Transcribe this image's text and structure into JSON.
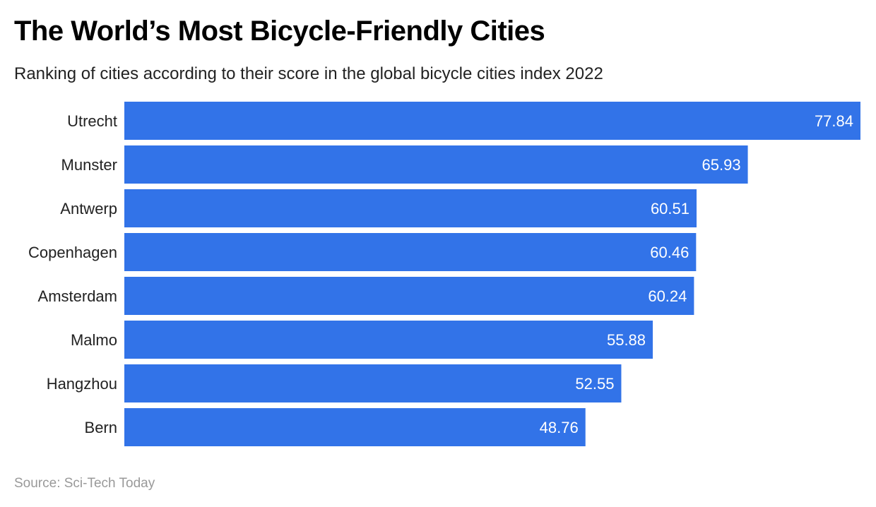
{
  "chart_data": {
    "type": "bar",
    "orientation": "horizontal",
    "title": "The World’s Most Bicycle-Friendly Cities",
    "subtitle": "Ranking of cities according to their score in the global bicycle cities index 2022",
    "source": "Source: Sci-Tech Today",
    "categories": [
      "Utrecht",
      "Munster",
      "Antwerp",
      "Copenhagen",
      "Amsterdam",
      "Malmo",
      "Hangzhou",
      "Bern"
    ],
    "values": [
      77.84,
      65.93,
      60.51,
      60.46,
      60.24,
      55.88,
      52.55,
      48.76
    ],
    "value_labels": [
      "77.84",
      "65.93",
      "60.51",
      "60.46",
      "60.24",
      "55.88",
      "52.55",
      "48.76"
    ],
    "xlim": [
      0,
      77.84
    ],
    "grid": false,
    "bar_color": "#3273E8"
  }
}
